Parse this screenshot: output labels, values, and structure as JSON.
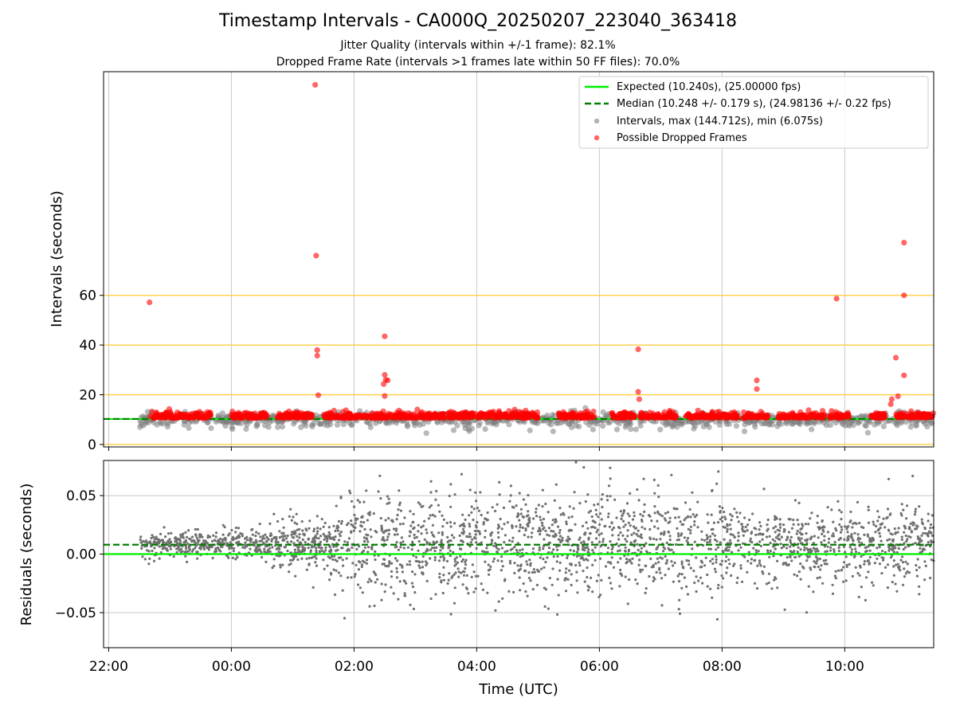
{
  "figure": {
    "title": "Timestamp Intervals - CA000Q_20250207_223040_363418",
    "subtitle_jitter": "Jitter Quality (intervals within +/-1 frame): 82.1%",
    "subtitle_dropped": "Dropped Frame Rate (intervals >1 frames late within 50 FF files): 70.0%"
  },
  "colors": {
    "expected": "#00ee00",
    "median": "#007f00",
    "intervals": "#808080",
    "dropped": "#ff0000",
    "reference": "#ffc830",
    "grid": "#c8c8c8"
  },
  "chart_data": [
    {
      "type": "scatter",
      "ylabel": "Intervals (seconds)",
      "xlim": [
        "21:55",
        "11:27"
      ],
      "ylim": [
        -1,
        150
      ],
      "yticks": [
        "0",
        "20",
        "40",
        "60"
      ],
      "grid": "x-vertical gray; horizontal orange reference lines at 0, 20, 40, 60",
      "legend_position": "upper right",
      "legend": {
        "expected": "Expected (10.240s), (25.00000 fps)",
        "median": "Median (10.248 +/- 0.179 s), (24.98136 +/- 0.22 fps)",
        "intervals": "Intervals, max (144.712s), min (6.075s)",
        "dropped": "Possible Dropped Frames"
      },
      "expected_y": 10.24,
      "median_y": 10.248,
      "interval_range": [
        "22:30",
        "11:27"
      ],
      "dropped_outliers": [
        {
          "x": "22:40",
          "y": 57.2
        },
        {
          "x": "01:22",
          "y": 144.7
        },
        {
          "x": "01:23",
          "y": 76.0
        },
        {
          "x": "01:24",
          "y": 38.0
        },
        {
          "x": "01:24",
          "y": 35.7
        },
        {
          "x": "01:25",
          "y": 19.8
        },
        {
          "x": "02:30",
          "y": 43.5
        },
        {
          "x": "02:30",
          "y": 28.0
        },
        {
          "x": "02:31",
          "y": 26.0
        },
        {
          "x": "02:29",
          "y": 24.3
        },
        {
          "x": "02:30",
          "y": 19.5
        },
        {
          "x": "02:33",
          "y": 25.8
        },
        {
          "x": "06:38",
          "y": 38.3
        },
        {
          "x": "06:38",
          "y": 21.2
        },
        {
          "x": "06:39",
          "y": 18.2
        },
        {
          "x": "08:34",
          "y": 25.8
        },
        {
          "x": "08:34",
          "y": 22.3
        },
        {
          "x": "09:52",
          "y": 58.7
        },
        {
          "x": "10:58",
          "y": 81.2
        },
        {
          "x": "10:58",
          "y": 60.0
        },
        {
          "x": "10:50",
          "y": 34.9
        },
        {
          "x": "10:58",
          "y": 27.8
        },
        {
          "x": "10:52",
          "y": 19.4
        },
        {
          "x": "10:45",
          "y": 16.2
        },
        {
          "x": "10:46",
          "y": 18.2
        }
      ]
    },
    {
      "type": "scatter",
      "xlabel": "Time (UTC)",
      "ylabel": "Residuals (seconds)",
      "xlim": [
        "21:55",
        "11:27"
      ],
      "ylim": [
        -0.08,
        0.08
      ],
      "yticks": [
        "0.05",
        "0.00",
        "−0.05"
      ],
      "xticks": [
        "22:00",
        "00:00",
        "02:00",
        "04:00",
        "06:00",
        "08:00",
        "10:00"
      ],
      "grid": "both",
      "expected_y": 0.0,
      "median_y": 0.008,
      "residual_range": [
        "22:30",
        "11:27"
      ]
    }
  ]
}
